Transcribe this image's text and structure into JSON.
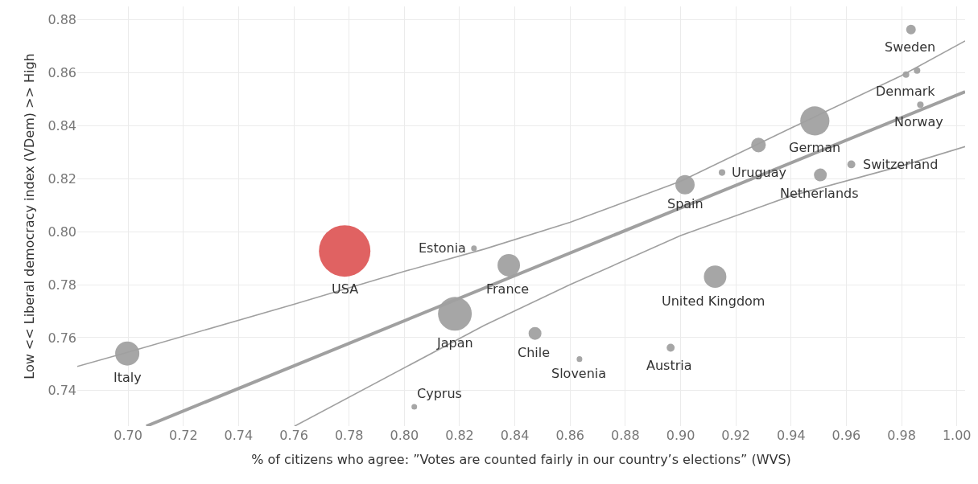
{
  "chart_data": {
    "type": "bubble",
    "xlabel": "% of citizens who agree: ”Votes are counted fairly in our country’s elections” (WVS)",
    "ylabel": "Low << Liberal democracy index (VDem) >> High",
    "xlim": [
      0.6816,
      1.003
    ],
    "ylim": [
      0.7266,
      0.885
    ],
    "xticks": [
      {
        "value": 0.7,
        "label": "0.70"
      },
      0.72,
      0.74,
      0.76,
      0.78,
      {
        "value": 0.8,
        "label": "0.80"
      },
      0.82,
      0.84,
      0.86,
      0.88,
      {
        "value": 0.9,
        "label": "0.90"
      },
      0.92,
      0.94,
      0.96,
      0.98,
      {
        "value": 1.0,
        "label": "1.00"
      }
    ],
    "yticks": [
      0.74,
      0.76,
      0.78,
      {
        "value": 0.8,
        "label": "0.80"
      },
      0.82,
      0.84,
      0.86,
      0.88
    ],
    "grid": true,
    "series": [
      {
        "x": [
          0.6997,
          0.7784,
          0.8252,
          0.8036,
          0.8183,
          0.8378,
          0.8473,
          0.8634,
          0.8964,
          0.9125,
          0.9016,
          0.915,
          0.9282,
          0.9486,
          0.9506,
          0.9618,
          0.9834,
          0.9816,
          0.9856,
          0.9868
        ],
        "values": [
          0.754,
          0.7927,
          0.7937,
          0.7339,
          0.769,
          0.7873,
          0.7616,
          0.7519,
          0.7562,
          0.783,
          0.8177,
          0.8223,
          0.8327,
          0.8418,
          0.8214,
          0.8254,
          0.8763,
          0.8593,
          0.8608,
          0.8479
        ],
        "sizes": [
          0.22,
          1,
          0.012,
          0.012,
          0.43,
          0.19,
          0.0625,
          0.012,
          0.024,
          0.19,
          0.14,
          0.016,
          0.08,
          0.32,
          0.0625,
          0.024,
          0.035,
          0.016,
          0.016,
          0.016
        ],
        "colors": [
          "#a6a6a6",
          "#e06262",
          "#a6a6a6",
          "#a6a6a6",
          "#a6a6a6",
          "#a6a6a6",
          "#a6a6a6",
          "#a6a6a6",
          "#a6a6a6",
          "#a6a6a6",
          "#a6a6a6",
          "#a6a6a6",
          "#a6a6a6",
          "#a6a6a6",
          "#a6a6a6",
          "#a6a6a6",
          "#a6a6a6",
          "#a6a6a6",
          "#a6a6a6",
          "#a6a6a6"
        ]
      },
      {
        "type": "line",
        "color": "#a0a0a0",
        "x": [
          0.7066,
          1.003
        ],
        "values": [
          0.7266,
          0.8528
        ]
      },
      {
        "type": "line",
        "color": "#a0a0a0",
        "x": [
          0.6816,
          0.7,
          0.76,
          0.8,
          0.8289,
          0.86,
          0.9,
          0.94,
          0.98,
          1.003
        ],
        "values": [
          0.7491,
          0.7545,
          0.7726,
          0.785,
          0.7934,
          0.8035,
          0.819,
          0.8391,
          0.8589,
          0.872
        ]
      },
      {
        "type": "line",
        "color": "#a0a0a0",
        "x": [
          0.7603,
          0.8289,
          0.86,
          0.9,
          0.94,
          0.98,
          1.003
        ],
        "values": [
          0.7266,
          0.7646,
          0.78,
          0.7985,
          0.8135,
          0.8248,
          0.8321
        ]
      }
    ],
    "annotations": [
      {
        "text": "Italy",
        "x": 0.6997,
        "y": 0.754
      },
      {
        "text": "USA",
        "x": 0.7784,
        "y": 0.7927
      },
      {
        "text": "Estonia",
        "x": 0.8252,
        "y": 0.7937
      },
      {
        "text": "Cyprus",
        "x": 0.8036,
        "y": 0.7339
      },
      {
        "text": "Japan",
        "x": 0.8183,
        "y": 0.769
      },
      {
        "text": "France",
        "x": 0.8378,
        "y": 0.7873
      },
      {
        "text": "Chile",
        "x": 0.8473,
        "y": 0.7616
      },
      {
        "text": "Slovenia",
        "x": 0.8634,
        "y": 0.7519
      },
      {
        "text": "Austria",
        "x": 0.8964,
        "y": 0.7562
      },
      {
        "text": "United Kingdom",
        "x": 0.9125,
        "y": 0.783
      },
      {
        "text": "Spain",
        "x": 0.9016,
        "y": 0.8177
      },
      {
        "text": "Uruguay",
        "x": 0.915,
        "y": 0.8223
      },
      {
        "text": "German",
        "x": 0.9486,
        "y": 0.8418
      },
      {
        "text": "Netherlands",
        "x": 0.9506,
        "y": 0.8214
      },
      {
        "text": "Switzerland",
        "x": 0.9618,
        "y": 0.8254
      },
      {
        "text": "Sweden",
        "x": 0.9834,
        "y": 0.8763
      },
      {
        "text": "Denmark",
        "x": 0.9816,
        "y": 0.8593
      },
      {
        "text": "Norway",
        "x": 0.9868,
        "y": 0.8479
      }
    ]
  }
}
